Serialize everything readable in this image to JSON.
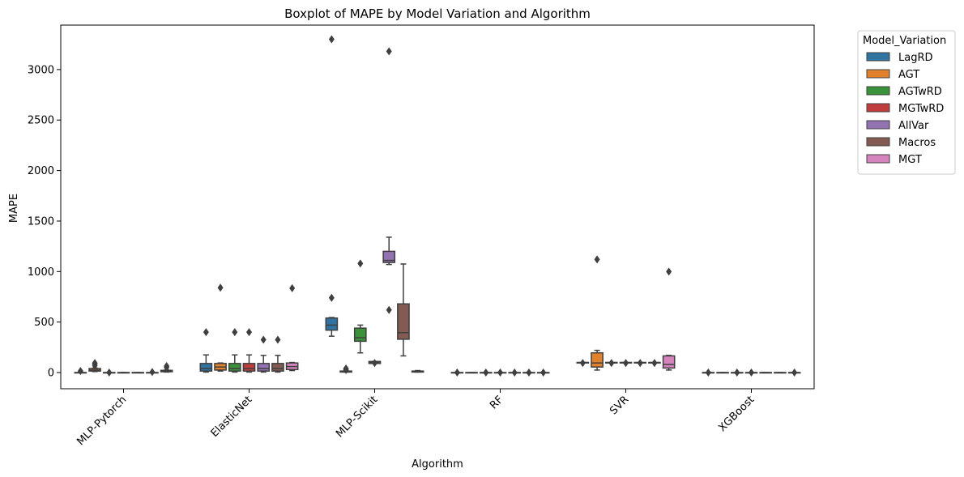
{
  "chart_data": {
    "type": "boxplot",
    "title": "Boxplot of MAPE by Model Variation and Algorithm",
    "xlabel": "Algorithm",
    "ylabel": "MAPE",
    "ylim": [
      -160,
      3440
    ],
    "yticks": [
      0,
      500,
      1000,
      1500,
      2000,
      2500,
      3000
    ],
    "grid": false,
    "legend_title": "Model_Variation",
    "legend_position": "outside-top-right",
    "categories": [
      "MLP-Pytorch",
      "ElasticNet",
      "MLP-Scikit",
      "RF",
      "SVR",
      "XGBoost"
    ],
    "series": [
      {
        "name": "LagRD",
        "color": "#3274a1",
        "boxes": [
          {
            "q1": 0,
            "median": 0,
            "q3": 0,
            "whislo": 0,
            "whishi": 0,
            "fliers": [
              15
            ]
          },
          {
            "q1": 15,
            "median": 40,
            "q3": 90,
            "whislo": 5,
            "whishi": 175,
            "fliers": [
              400
            ]
          },
          {
            "q1": 420,
            "median": 470,
            "q3": 540,
            "whislo": 360,
            "whishi": 545,
            "fliers": [
              740,
              3300
            ]
          },
          {
            "q1": 0,
            "median": 0,
            "q3": 0,
            "whislo": 0,
            "whishi": 0,
            "fliers": [
              0
            ]
          },
          {
            "q1": 95,
            "median": 100,
            "q3": 100,
            "whislo": 95,
            "whishi": 100,
            "fliers": [
              95
            ]
          },
          {
            "q1": 0,
            "median": 0,
            "q3": 0,
            "whislo": 0,
            "whishi": 0,
            "fliers": [
              0
            ]
          }
        ]
      },
      {
        "name": "AGT",
        "color": "#e1812c",
        "boxes": [
          {
            "q1": 15,
            "median": 25,
            "q3": 40,
            "whislo": 10,
            "whishi": 45,
            "fliers": [
              70,
              85,
              95
            ]
          },
          {
            "q1": 25,
            "median": 55,
            "q3": 90,
            "whislo": 15,
            "whishi": 95,
            "fliers": [
              840
            ]
          },
          {
            "q1": 5,
            "median": 10,
            "q3": 15,
            "whislo": 5,
            "whishi": 15,
            "fliers": [
              25,
              35,
              40
            ]
          },
          {
            "q1": 0,
            "median": 0,
            "q3": 0,
            "whislo": 0,
            "whishi": 0,
            "fliers": []
          },
          {
            "q1": 55,
            "median": 95,
            "q3": 195,
            "whislo": 25,
            "whishi": 220,
            "fliers": [
              1120
            ]
          },
          {
            "q1": 0,
            "median": 0,
            "q3": 0,
            "whislo": 0,
            "whishi": 0,
            "fliers": []
          }
        ]
      },
      {
        "name": "AGTwRD",
        "color": "#3a923a",
        "boxes": [
          {
            "q1": 0,
            "median": 0,
            "q3": 0,
            "whislo": 0,
            "whishi": 0,
            "fliers": [
              0
            ]
          },
          {
            "q1": 15,
            "median": 40,
            "q3": 90,
            "whislo": 5,
            "whishi": 175,
            "fliers": [
              400
            ]
          },
          {
            "q1": 310,
            "median": 345,
            "q3": 440,
            "whislo": 195,
            "whishi": 470,
            "fliers": [
              1080
            ]
          },
          {
            "q1": 0,
            "median": 0,
            "q3": 0,
            "whislo": 0,
            "whishi": 0,
            "fliers": [
              0
            ]
          },
          {
            "q1": 95,
            "median": 100,
            "q3": 100,
            "whislo": 95,
            "whishi": 100,
            "fliers": [
              95
            ]
          },
          {
            "q1": 0,
            "median": 0,
            "q3": 0,
            "whislo": 0,
            "whishi": 0,
            "fliers": [
              0
            ]
          }
        ]
      },
      {
        "name": "MGTwRD",
        "color": "#c03d3e",
        "boxes": [
          {
            "q1": 0,
            "median": 0,
            "q3": 0,
            "whislo": 0,
            "whishi": 0,
            "fliers": []
          },
          {
            "q1": 15,
            "median": 40,
            "q3": 90,
            "whislo": 5,
            "whishi": 175,
            "fliers": [
              400
            ]
          },
          {
            "q1": 90,
            "median": 100,
            "q3": 110,
            "whislo": 90,
            "whishi": 110,
            "fliers": [
              95
            ]
          },
          {
            "q1": 0,
            "median": 0,
            "q3": 0,
            "whislo": 0,
            "whishi": 0,
            "fliers": [
              0
            ]
          },
          {
            "q1": 95,
            "median": 100,
            "q3": 100,
            "whislo": 95,
            "whishi": 100,
            "fliers": [
              95
            ]
          },
          {
            "q1": 0,
            "median": 0,
            "q3": 0,
            "whislo": 0,
            "whishi": 0,
            "fliers": [
              0
            ]
          }
        ]
      },
      {
        "name": "AllVar",
        "color": "#9372b2",
        "boxes": [
          {
            "q1": 0,
            "median": 0,
            "q3": 0,
            "whislo": 0,
            "whishi": 0,
            "fliers": []
          },
          {
            "q1": 15,
            "median": 40,
            "q3": 90,
            "whislo": 5,
            "whishi": 170,
            "fliers": [
              325
            ]
          },
          {
            "q1": 1090,
            "median": 1110,
            "q3": 1200,
            "whislo": 1070,
            "whishi": 1340,
            "fliers": [
              620,
              3180
            ]
          },
          {
            "q1": 0,
            "median": 0,
            "q3": 0,
            "whislo": 0,
            "whishi": 0,
            "fliers": [
              0
            ]
          },
          {
            "q1": 95,
            "median": 100,
            "q3": 100,
            "whislo": 95,
            "whishi": 100,
            "fliers": [
              95
            ]
          },
          {
            "q1": 0,
            "median": 0,
            "q3": 0,
            "whislo": 0,
            "whishi": 0,
            "fliers": []
          }
        ]
      },
      {
        "name": "Macros",
        "color": "#845b53",
        "boxes": [
          {
            "q1": 0,
            "median": 0,
            "q3": 0,
            "whislo": 0,
            "whishi": 0,
            "fliers": [
              5
            ]
          },
          {
            "q1": 15,
            "median": 40,
            "q3": 90,
            "whislo": 5,
            "whishi": 170,
            "fliers": [
              325
            ]
          },
          {
            "q1": 330,
            "median": 395,
            "q3": 680,
            "whislo": 165,
            "whishi": 1075,
            "fliers": []
          },
          {
            "q1": 0,
            "median": 0,
            "q3": 0,
            "whislo": 0,
            "whishi": 0,
            "fliers": [
              0
            ]
          },
          {
            "q1": 95,
            "median": 100,
            "q3": 100,
            "whislo": 95,
            "whishi": 100,
            "fliers": [
              95
            ]
          },
          {
            "q1": 0,
            "median": 0,
            "q3": 0,
            "whislo": 0,
            "whishi": 0,
            "fliers": []
          }
        ]
      },
      {
        "name": "MGT",
        "color": "#d684bd",
        "boxes": [
          {
            "q1": 8,
            "median": 15,
            "q3": 22,
            "whislo": 5,
            "whishi": 25,
            "fliers": [
              50,
              65
            ]
          },
          {
            "q1": 30,
            "median": 60,
            "q3": 95,
            "whislo": 20,
            "whishi": 100,
            "fliers": [
              835
            ]
          },
          {
            "q1": 5,
            "median": 8,
            "q3": 15,
            "whislo": 5,
            "whishi": 20,
            "fliers": []
          },
          {
            "q1": 0,
            "median": 0,
            "q3": 0,
            "whislo": 0,
            "whishi": 0,
            "fliers": [
              0
            ]
          },
          {
            "q1": 45,
            "median": 80,
            "q3": 165,
            "whislo": 25,
            "whishi": 170,
            "fliers": [
              1000
            ]
          },
          {
            "q1": 0,
            "median": 0,
            "q3": 0,
            "whislo": 0,
            "whishi": 0,
            "fliers": [
              0
            ]
          }
        ]
      }
    ]
  }
}
